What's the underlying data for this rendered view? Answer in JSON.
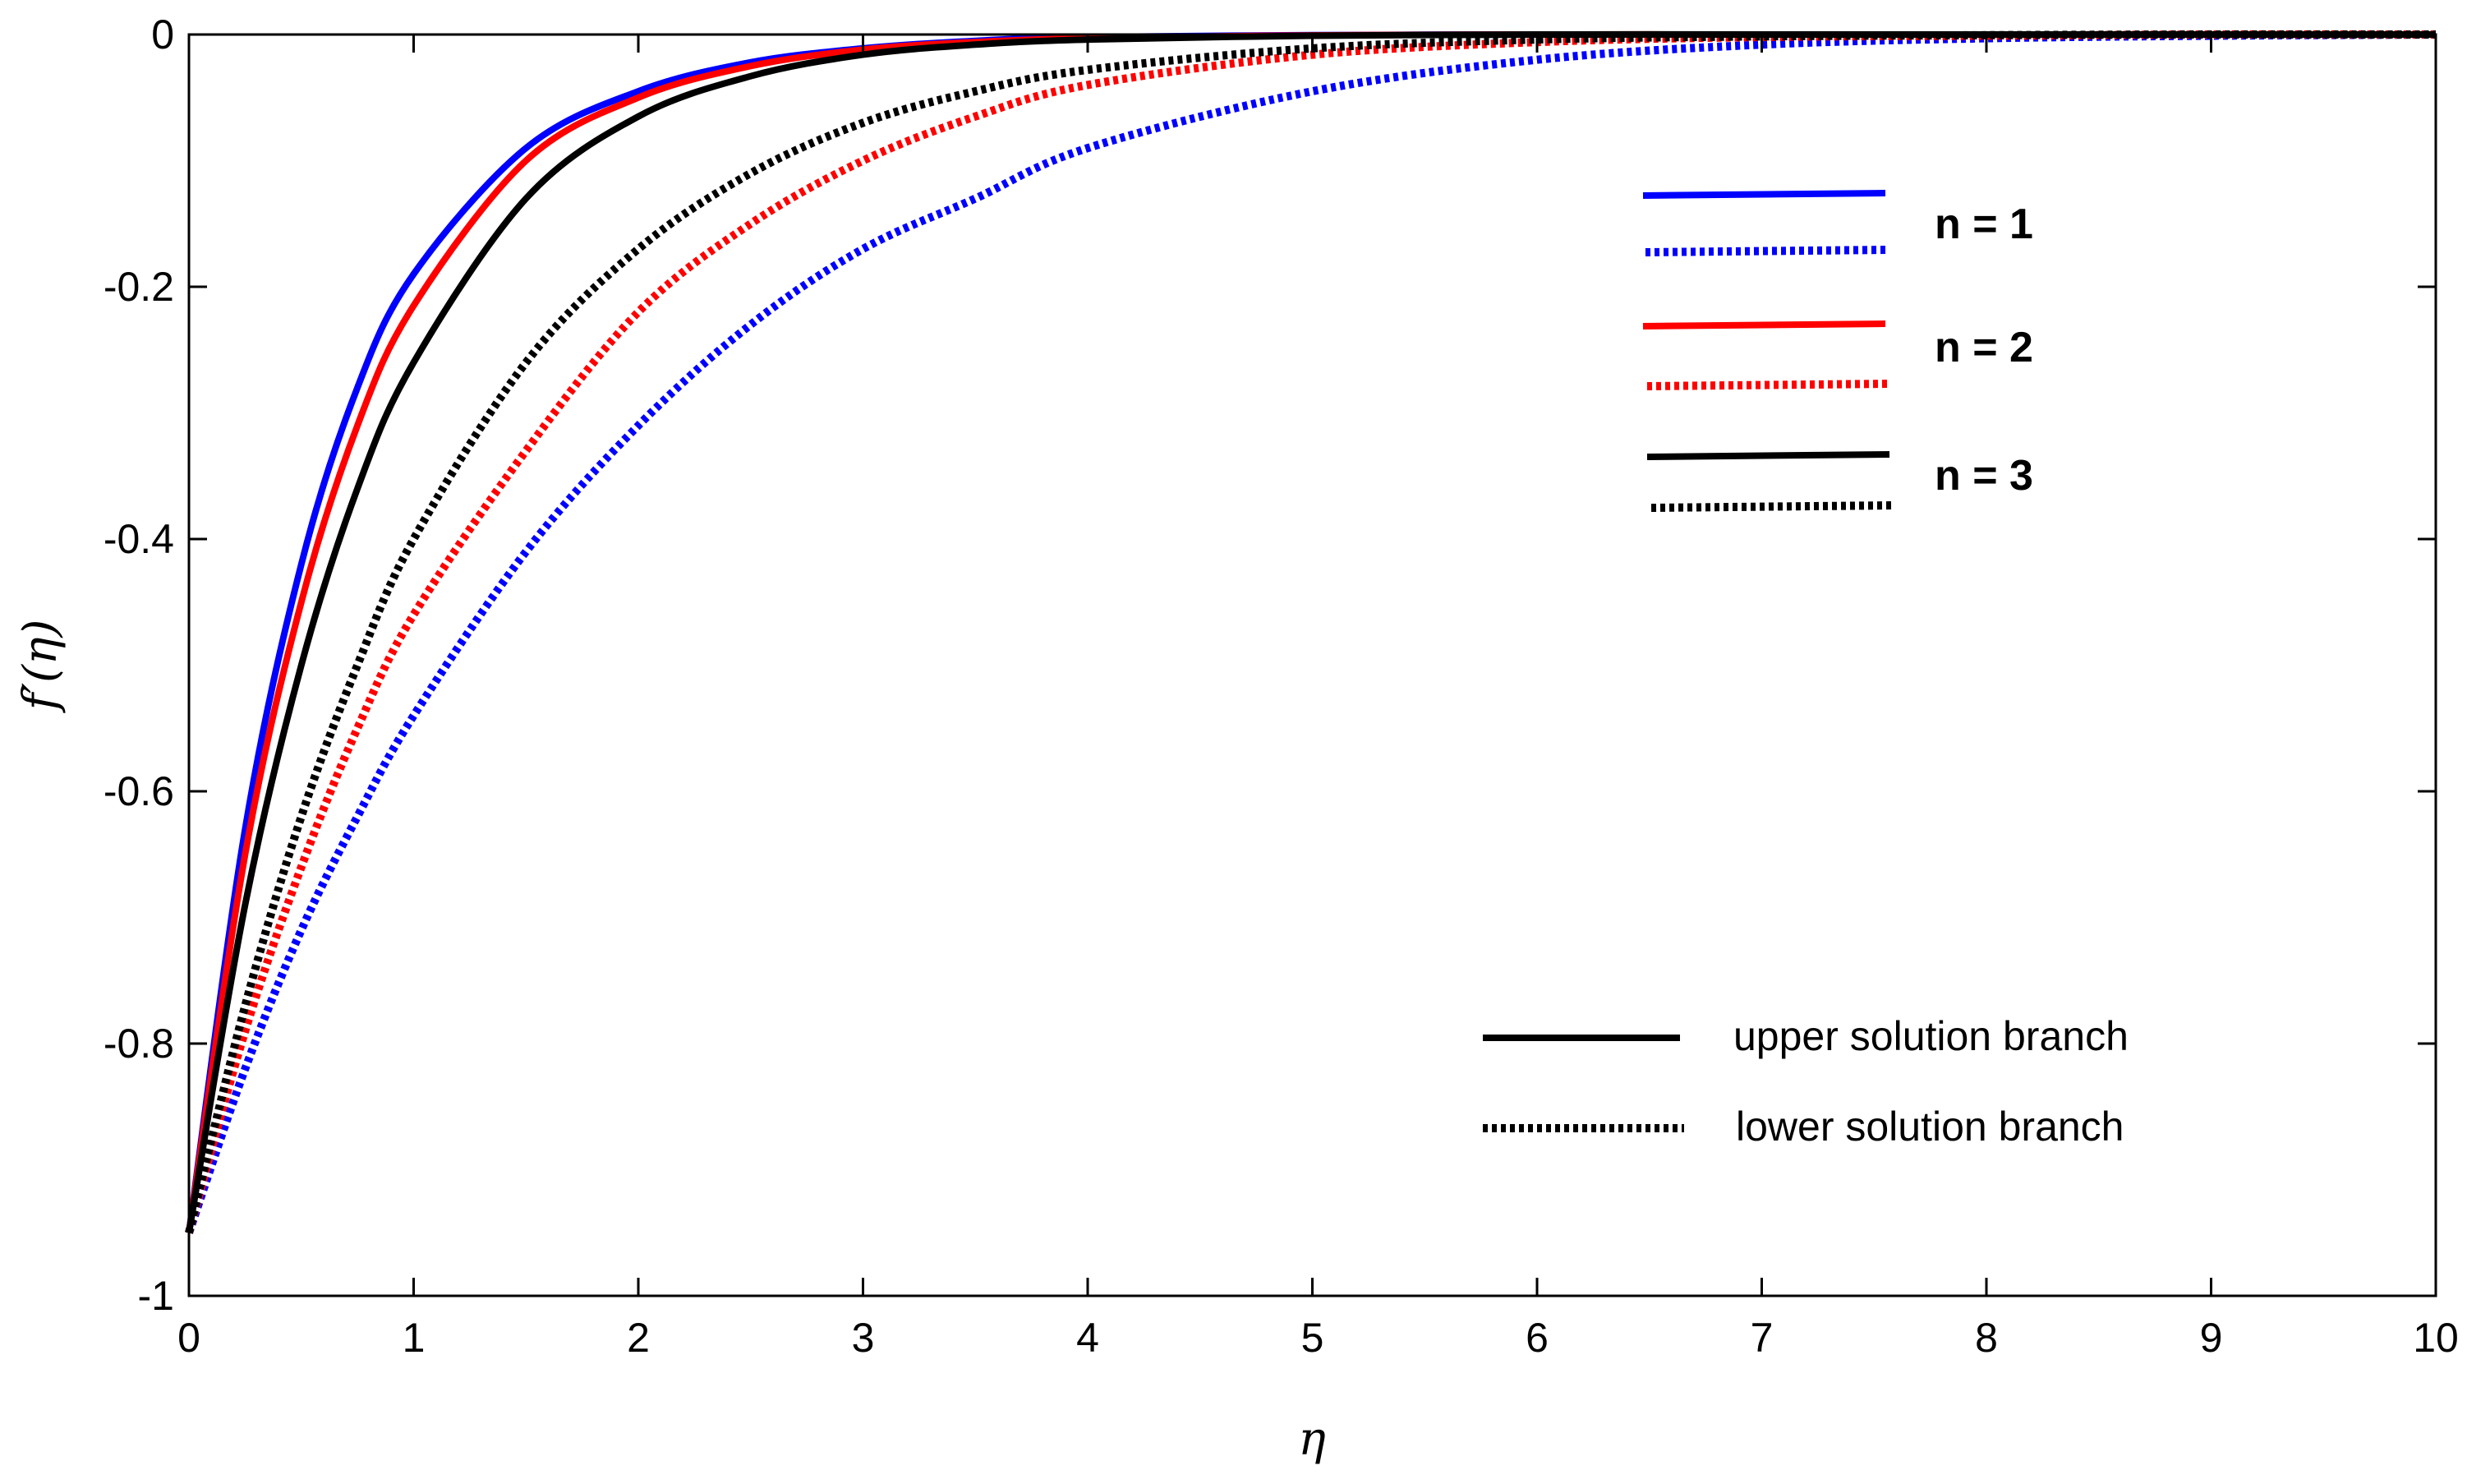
{
  "chart_data": {
    "type": "line",
    "title": "",
    "xlabel": "η",
    "ylabel": "f′(η)",
    "xlim": [
      0,
      10
    ],
    "ylim": [
      -1,
      0
    ],
    "xticks": [
      "0",
      "1",
      "2",
      "3",
      "4",
      "5",
      "6",
      "7",
      "8",
      "9",
      "10"
    ],
    "yticks": [
      "0",
      "-0.2",
      "-0.4",
      "-0.6",
      "-0.8",
      "-1"
    ],
    "grid": false,
    "x": [
      0,
      0.25,
      0.5,
      0.75,
      1,
      1.5,
      2,
      2.5,
      3,
      3.5,
      4,
      5,
      6,
      7,
      8,
      9,
      10
    ],
    "series": [
      {
        "group": "n = 1",
        "branch": "upper",
        "color": "#0000ff",
        "dash": "solid",
        "values": [
          -0.95,
          -0.63,
          -0.42,
          -0.28,
          -0.19,
          -0.09,
          -0.045,
          -0.022,
          -0.011,
          -0.005,
          -0.002,
          -0.0005,
          0,
          0,
          0,
          0,
          0
        ]
      },
      {
        "group": "n = 1",
        "branch": "lower",
        "color": "#0000ff",
        "dash": "dotted",
        "values": [
          -0.95,
          -0.82,
          -0.71,
          -0.62,
          -0.54,
          -0.41,
          -0.31,
          -0.23,
          -0.17,
          -0.13,
          -0.09,
          -0.045,
          -0.02,
          -0.008,
          -0.003,
          -0.001,
          0
        ]
      },
      {
        "group": "n = 2",
        "branch": "upper",
        "color": "#ff0000",
        "dash": "solid",
        "values": [
          -0.95,
          -0.65,
          -0.45,
          -0.31,
          -0.215,
          -0.1,
          -0.05,
          -0.025,
          -0.012,
          -0.006,
          -0.003,
          -0.0007,
          0,
          0,
          0,
          0,
          0
        ]
      },
      {
        "group": "n = 2",
        "branch": "lower",
        "color": "#ff0000",
        "dash": "dotted",
        "values": [
          -0.95,
          -0.79,
          -0.66,
          -0.55,
          -0.46,
          -0.33,
          -0.22,
          -0.15,
          -0.1,
          -0.065,
          -0.04,
          -0.016,
          -0.006,
          -0.002,
          -0.001,
          0,
          0
        ]
      },
      {
        "group": "n = 3",
        "branch": "upper",
        "color": "#000000",
        "dash": "solid",
        "values": [
          -0.95,
          -0.69,
          -0.5,
          -0.36,
          -0.26,
          -0.13,
          -0.065,
          -0.033,
          -0.016,
          -0.008,
          -0.004,
          -0.001,
          0,
          0,
          0,
          0,
          0
        ]
      },
      {
        "group": "n = 3",
        "branch": "lower",
        "color": "#000000",
        "dash": "dotted",
        "values": [
          -0.95,
          -0.77,
          -0.62,
          -0.5,
          -0.4,
          -0.26,
          -0.17,
          -0.11,
          -0.07,
          -0.045,
          -0.028,
          -0.011,
          -0.004,
          -0.0015,
          -0.0005,
          0,
          0
        ]
      }
    ],
    "legend": {
      "placement": "top-right",
      "groups": [
        {
          "label": "n = 1",
          "color": "#0000ff"
        },
        {
          "label": "n = 2",
          "color": "#ff0000"
        },
        {
          "label": "n = 3",
          "color": "#000000"
        }
      ],
      "styles": [
        {
          "label": "upper solution branch",
          "dash": "solid",
          "placement": "bottom-right"
        },
        {
          "label": "lower solution branch",
          "dash": "dotted",
          "placement": "bottom-right"
        }
      ]
    }
  }
}
